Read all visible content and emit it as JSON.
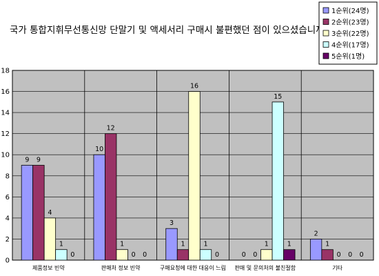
{
  "chart_data": {
    "type": "bar",
    "title": "국가 통합지휘무선통신망 단말기 및 액세서리 구매시 불편했던 점이 있으셨습니까?",
    "xlabel": "",
    "ylabel": "",
    "ylim": [
      0,
      18
    ],
    "yticks": [
      0,
      2,
      4,
      6,
      8,
      10,
      12,
      14,
      16,
      18
    ],
    "grid": true,
    "legend_position": "top-right",
    "categories": [
      "제품정보 빈약",
      "판매처 정보 빈약",
      "구매요청에 대한 대응이 느림",
      "판매 및 문의처의 불친절함",
      "기타"
    ],
    "series": [
      {
        "name": "1순위(24명)",
        "color": "#9999ff",
        "values": [
          9,
          10,
          3,
          0,
          2
        ]
      },
      {
        "name": "2순위(23명)",
        "color": "#993366",
        "values": [
          9,
          12,
          1,
          0,
          1
        ]
      },
      {
        "name": "3순위(22명)",
        "color": "#ffffcc",
        "values": [
          4,
          1,
          16,
          1,
          0
        ]
      },
      {
        "name": "4순위(17명)",
        "color": "#ccffff",
        "values": [
          1,
          0,
          1,
          15,
          0
        ]
      },
      {
        "name": "5순위(1명)",
        "color": "#660066",
        "values": [
          0,
          0,
          0,
          1,
          0
        ]
      }
    ]
  },
  "colors": {
    "plot_background": "#c0c0c0",
    "gridline": "#000000"
  }
}
